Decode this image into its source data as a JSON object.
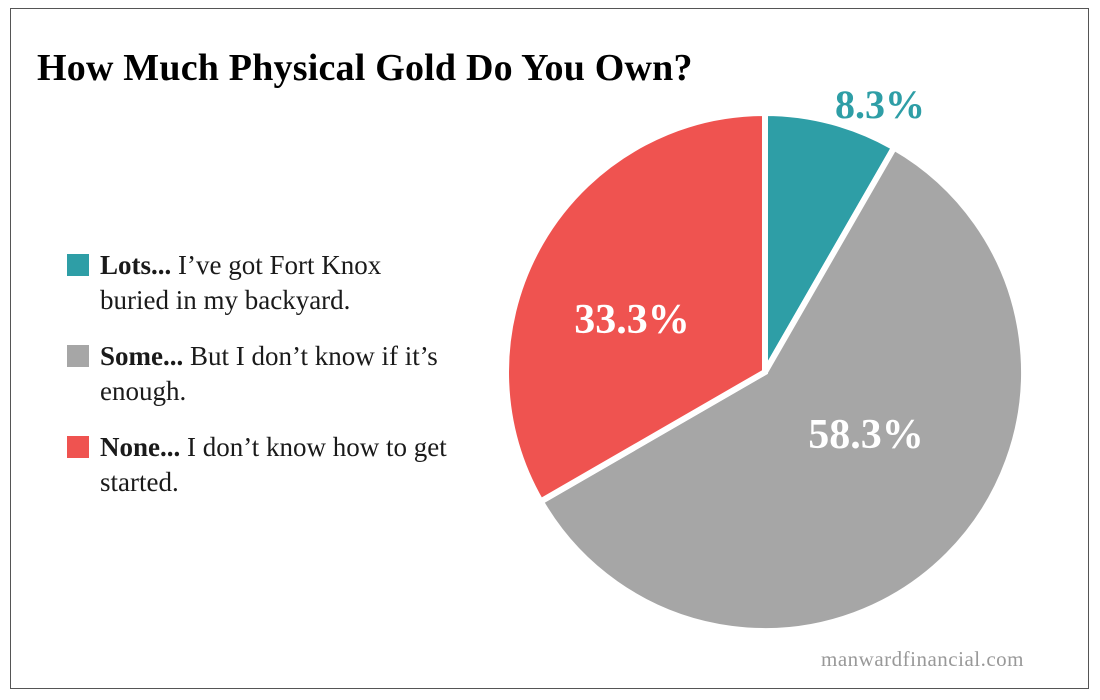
{
  "chart_data": {
    "type": "pie",
    "title": "How Much Physical Gold Do You Own?",
    "slices": [
      {
        "key": "lots",
        "value": 8.3,
        "label": "8.3%",
        "color": "#2e9ea6",
        "label_color": "#2e9ea6",
        "legend_bold": "Lots...",
        "legend_text": "I’ve got Fort Knox buried in my backyard."
      },
      {
        "key": "some",
        "value": 58.3,
        "label": "58.3%",
        "color": "#a6a6a6",
        "label_color": "#ffffff",
        "legend_bold": "Some...",
        "legend_text": "But I don’t know if it’s enough."
      },
      {
        "key": "none",
        "value": 33.3,
        "label": "33.3%",
        "color": "#ef5350",
        "label_color": "#ffffff",
        "legend_bold": "None...",
        "legend_text": "I don’t know how to get started."
      }
    ],
    "legend_placement": "left"
  },
  "source": "manwardfinancial.com"
}
